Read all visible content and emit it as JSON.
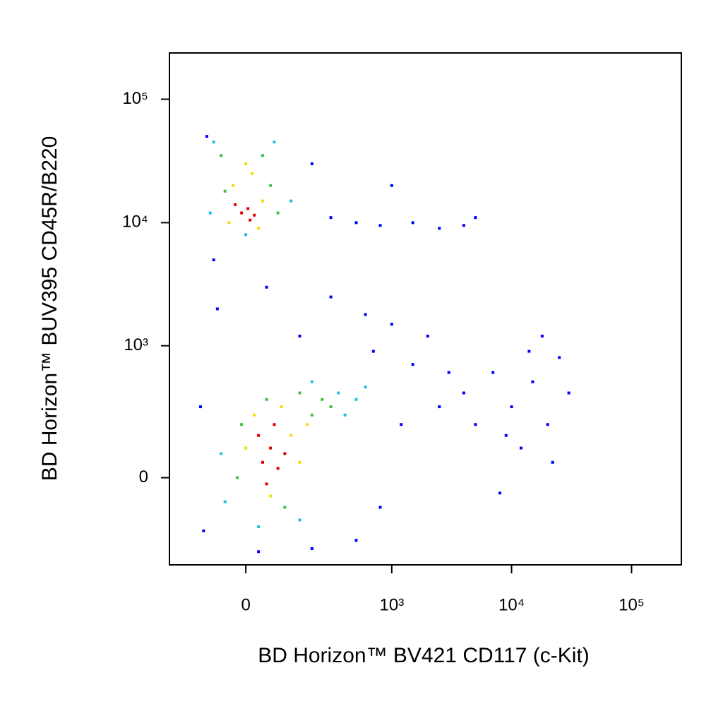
{
  "chart_data": {
    "type": "scatter",
    "xlabel": "BD Horizon™ BV421 CD117 (c-Kit)",
    "ylabel": "BD Horizon™ BUV395 CD45R/B220",
    "xscale": "biexponential",
    "yscale": "biexponential",
    "xlim": [
      -250,
      260000
    ],
    "ylim": [
      -420,
      237000
    ],
    "xticks": [
      0,
      {
        "value": 1000,
        "label": "10³"
      },
      {
        "value": 10000,
        "label": "10⁴"
      },
      {
        "value": 100000,
        "label": "10⁵"
      }
    ],
    "yticks": [
      0,
      {
        "value": 1000,
        "label": "10³"
      },
      {
        "value": 10000,
        "label": "10⁴"
      },
      {
        "value": 100000,
        "label": "10⁵"
      }
    ],
    "series": [
      {
        "color": "#0000ff",
        "x": [
          -100,
          200,
          300,
          500,
          800,
          1500,
          2500,
          4000,
          5000,
          1000,
          -80,
          50,
          300,
          600,
          1000,
          2000,
          -70,
          150,
          700,
          1500,
          3000,
          4000,
          2500,
          1200,
          800,
          -120,
          -110,
          200,
          500,
          30,
          7000,
          10000,
          15000,
          20000,
          12000,
          25000,
          18000,
          30000,
          9000,
          14000,
          22000,
          8000,
          5000
        ],
        "y": [
          50000,
          30000,
          11000,
          10000,
          9500,
          10000,
          9000,
          9500,
          11000,
          20000,
          5000,
          3000,
          2500,
          1800,
          1500,
          1200,
          2000,
          1200,
          900,
          700,
          600,
          400,
          300,
          200,
          -100,
          300,
          -200,
          -300,
          -250,
          -320,
          600,
          300,
          500,
          200,
          100,
          800,
          1200,
          400,
          150,
          900,
          50,
          -50,
          200
        ]
      },
      {
        "color": "#20c0e0",
        "x": [
          -80,
          70,
          -90,
          120,
          0,
          -60,
          350,
          500,
          200,
          400,
          150,
          -50,
          600,
          30
        ],
        "y": [
          45000,
          45000,
          12000,
          15000,
          8000,
          80,
          400,
          350,
          500,
          250,
          -150,
          -80,
          450,
          -180
        ]
      },
      {
        "color": "#40c040",
        "x": [
          -60,
          40,
          -50,
          60,
          80,
          -20,
          200,
          250,
          150,
          -10,
          100,
          300,
          50
        ],
        "y": [
          35000,
          35000,
          18000,
          20000,
          12000,
          0,
          250,
          350,
          400,
          200,
          -100,
          300,
          350
        ]
      },
      {
        "color": "#f0e000",
        "x": [
          -30,
          15,
          40,
          -40,
          30,
          0,
          0,
          120,
          150,
          20,
          90,
          60,
          180
        ],
        "y": [
          20000,
          25000,
          15000,
          10000,
          9000,
          30000,
          100,
          150,
          50,
          250,
          300,
          -60,
          200
        ]
      },
      {
        "color": "#e00000",
        "x": [
          -10,
          5,
          20,
          -25,
          10,
          40,
          60,
          80,
          30,
          100,
          50,
          70
        ],
        "y": [
          12000,
          13000,
          11500,
          14000,
          10500,
          50,
          100,
          30,
          150,
          80,
          -20,
          200
        ]
      }
    ]
  }
}
